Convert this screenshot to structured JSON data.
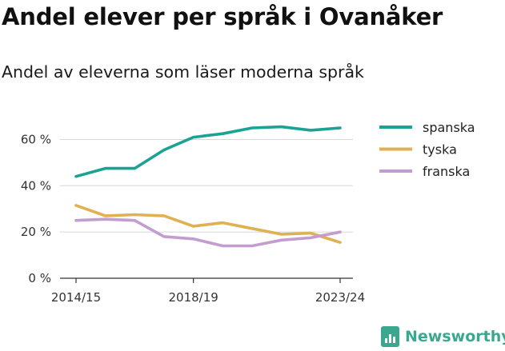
{
  "title": "Andel elever per språk i Ovanåker",
  "subtitle": "Andel av eleverna som läser moderna språk",
  "brand": {
    "name": "Newsworthy",
    "icon": "bar-chart-speech-icon",
    "color": "#3aa88f"
  },
  "chart_data": {
    "type": "line",
    "title": "Andel elever per språk i Ovanåker",
    "subtitle": "Andel av eleverna som läser moderna språk",
    "x": [
      "2014/15",
      "2015/16",
      "2016/17",
      "2017/18",
      "2018/19",
      "2019/20",
      "2020/21",
      "2021/22",
      "2022/23",
      "2023/24"
    ],
    "x_tick_labels": [
      "2014/15",
      "2018/19",
      "2023/24"
    ],
    "y_ticks": [
      0,
      20,
      40,
      60
    ],
    "y_tick_labels": [
      "0 %",
      "20 %",
      "40 %",
      "60 %"
    ],
    "ylim": [
      0,
      65
    ],
    "grid": true,
    "legend_position": "right",
    "series": [
      {
        "name": "spanska",
        "color": "#1aa394",
        "values": [
          44,
          47.5,
          47.5,
          55.5,
          61,
          62.5,
          65,
          65.5,
          64,
          65
        ]
      },
      {
        "name": "tyska",
        "color": "#e0b054",
        "values": [
          31.5,
          27,
          27.5,
          27,
          22.5,
          24,
          21.5,
          19,
          19.5,
          15.5
        ]
      },
      {
        "name": "franska",
        "color": "#c39cd0",
        "values": [
          25,
          25.5,
          25,
          18,
          17,
          14,
          14,
          16.5,
          17.5,
          20
        ]
      }
    ]
  }
}
